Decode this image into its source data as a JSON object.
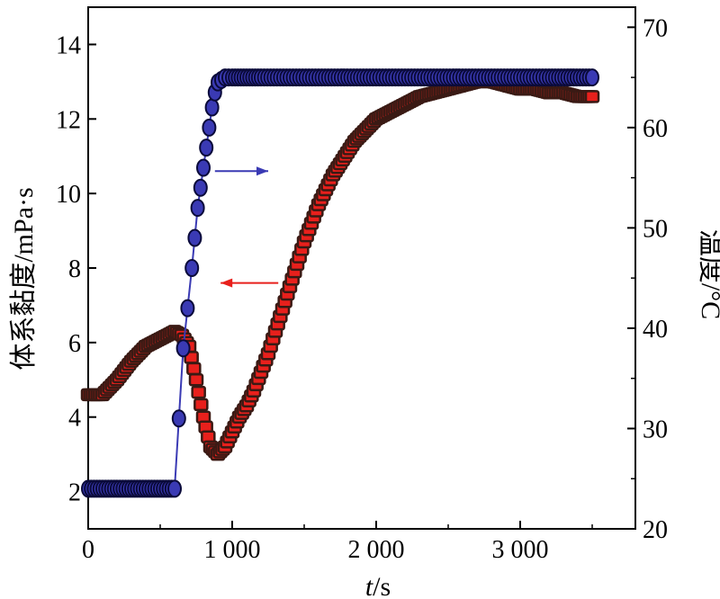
{
  "chart_data": {
    "type": "scatter",
    "xlabel": "t/s",
    "ylabel_left": "体系黏度/mPa·s",
    "ylabel_right": "温度/°C",
    "x_ticks": [
      0,
      1000,
      2000,
      3000
    ],
    "x_tick_labels": [
      "0",
      "1 000",
      "2 000",
      "3 000"
    ],
    "xlim": [
      0,
      3800
    ],
    "ylim_left": [
      1,
      15
    ],
    "ylim_right": [
      20,
      72
    ],
    "y_ticks_left": [
      2,
      4,
      6,
      8,
      10,
      12,
      14
    ],
    "y_ticks_right": [
      20,
      30,
      40,
      50,
      60,
      70
    ],
    "series": [
      {
        "axis": "left",
        "color": "#e8201c",
        "edge_color": "#3a1a14",
        "marker": "square",
        "x": [
          0,
          100,
          200,
          300,
          400,
          500,
          600,
          650,
          700,
          750,
          800,
          850,
          900,
          950,
          1000,
          1050,
          1100,
          1150,
          1200,
          1250,
          1300,
          1350,
          1400,
          1450,
          1500,
          1550,
          1600,
          1650,
          1700,
          1750,
          1800,
          1850,
          1900,
          1950,
          2000,
          2100,
          2200,
          2300,
          2400,
          2500,
          2600,
          2700,
          2800,
          2900,
          3000,
          3100,
          3200,
          3300,
          3400,
          3500
        ],
        "y": [
          4.6,
          4.6,
          5.0,
          5.5,
          5.9,
          6.1,
          6.3,
          6.2,
          5.9,
          5.0,
          4.0,
          3.2,
          3.0,
          3.2,
          3.6,
          4.0,
          4.3,
          4.7,
          5.2,
          5.7,
          6.3,
          6.9,
          7.5,
          8.1,
          8.7,
          9.2,
          9.7,
          10.1,
          10.5,
          10.8,
          11.1,
          11.4,
          11.6,
          11.8,
          12.0,
          12.2,
          12.4,
          12.6,
          12.7,
          12.8,
          12.9,
          13.0,
          13.0,
          12.9,
          12.8,
          12.8,
          12.7,
          12.7,
          12.6,
          12.6
        ]
      },
      {
        "axis": "right",
        "color": "#3a3ab4",
        "edge_color": "#0a0a3a",
        "marker": "circle",
        "x": [
          0,
          100,
          200,
          300,
          400,
          500,
          600,
          630,
          660,
          690,
          720,
          740,
          760,
          780,
          800,
          820,
          840,
          860,
          880,
          900,
          950,
          1000,
          1100,
          1200,
          1400,
          1600,
          1800,
          2000,
          2200,
          2400,
          2600,
          2800,
          3000,
          3200,
          3500
        ],
        "y": [
          24,
          24,
          24,
          24,
          24,
          24,
          24,
          31,
          38,
          42,
          46,
          49,
          52,
          54,
          56,
          58,
          60,
          62,
          63.5,
          64.5,
          65,
          65,
          65,
          65,
          65,
          65,
          65,
          65,
          65,
          65,
          65,
          65,
          65,
          65,
          65
        ]
      }
    ],
    "annotations": [
      {
        "type": "arrow",
        "direction": "right",
        "color": "#3a3ab4",
        "from": [
          880,
          10.6
        ],
        "to": [
          1250,
          10.6
        ]
      },
      {
        "type": "arrow",
        "direction": "left",
        "color": "#e8201c",
        "from": [
          1320,
          7.6
        ],
        "to": [
          920,
          7.6
        ]
      }
    ]
  }
}
